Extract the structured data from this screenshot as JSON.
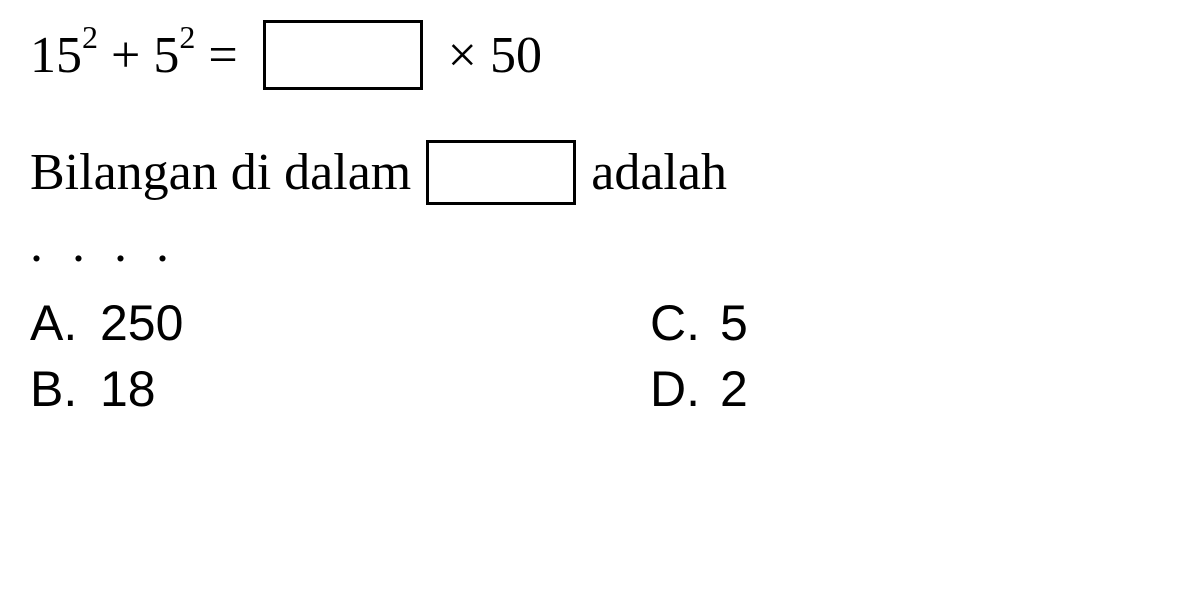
{
  "equation": {
    "base1": "15",
    "exp1": "2",
    "plus": " + ",
    "base2": "5",
    "exp2": "2",
    "equals": " = ",
    "times": " × ",
    "right_num": "50"
  },
  "question": {
    "prefix": "Bilangan di dalam",
    "suffix": "adalah"
  },
  "dots": ". . . .",
  "options": {
    "a": {
      "letter": "A.",
      "value": "250"
    },
    "b": {
      "letter": "B.",
      "value": "18"
    },
    "c": {
      "letter": "C.",
      "value": "5"
    },
    "d": {
      "letter": "D.",
      "value": "2"
    }
  },
  "colors": {
    "text": "#000000",
    "background": "#ffffff",
    "box_border": "#000000"
  },
  "fonts": {
    "equation_size": 52,
    "question_size": 52,
    "options_size": 50,
    "sup_size": 32
  }
}
